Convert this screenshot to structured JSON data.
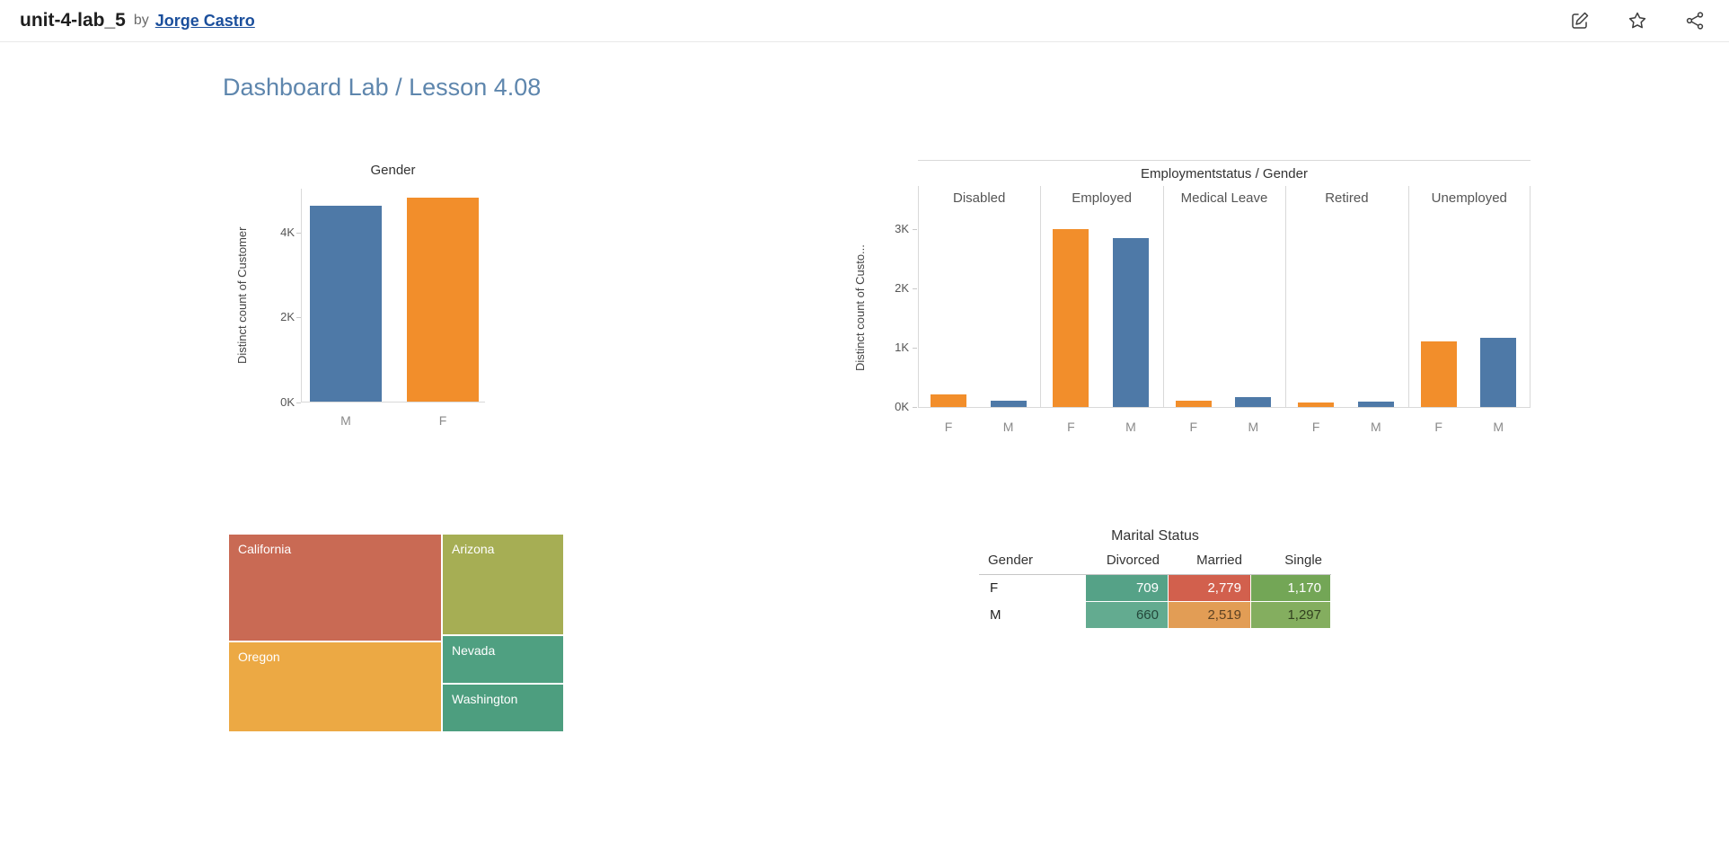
{
  "header": {
    "workbook_title": "unit-4-lab_5",
    "by_label": "by",
    "author": "Jorge Castro",
    "icons": [
      "make-copy-icon",
      "favorite-star-icon",
      "share-icon"
    ]
  },
  "dashboard": {
    "title": "Dashboard Lab / Lesson 4.08"
  },
  "colors": {
    "female_bar": "#f28e2b",
    "male_bar": "#4e79a7",
    "dashboard_title": "#5e86ad",
    "author_link": "#1b4f9c"
  },
  "chart_data": [
    {
      "id": "gender_distinct_count",
      "type": "bar",
      "title": "Gender",
      "ylabel": "Distinct count of Customer",
      "categories": [
        "M",
        "F"
      ],
      "values": [
        4600,
        4800
      ],
      "colors": [
        "#4e79a7",
        "#f28e2b"
      ],
      "ylim": [
        0,
        5030
      ],
      "yticks": [
        {
          "label": "0K",
          "value": 0
        },
        {
          "label": "2K",
          "value": 2000
        },
        {
          "label": "4K",
          "value": 4000
        }
      ]
    },
    {
      "id": "employment_status_by_gender",
      "type": "bar",
      "title": "Employmentstatus / Gender",
      "ylabel": "Distinct count of Custo...",
      "categories": [
        "F",
        "M"
      ],
      "series_colors": {
        "F": "#f28e2b",
        "M": "#4e79a7"
      },
      "panels": [
        {
          "label": "Disabled",
          "values": {
            "F": 210,
            "M": 110
          }
        },
        {
          "label": "Employed",
          "values": {
            "F": 3000,
            "M": 2840
          }
        },
        {
          "label": "Medical Leave",
          "values": {
            "F": 110,
            "M": 160
          }
        },
        {
          "label": "Retired",
          "values": {
            "F": 70,
            "M": 90
          }
        },
        {
          "label": "Unemployed",
          "values": {
            "F": 1100,
            "M": 1170
          }
        }
      ],
      "ylim": [
        0,
        3300
      ],
      "yticks": [
        {
          "label": "0K",
          "value": 0
        },
        {
          "label": "1K",
          "value": 1000
        },
        {
          "label": "2K",
          "value": 2000
        },
        {
          "label": "3K",
          "value": 3000
        }
      ]
    },
    {
      "id": "state_treemap",
      "type": "treemap",
      "items": [
        {
          "label": "California",
          "color": "#c96a54"
        },
        {
          "label": "Oregon",
          "color": "#eca944"
        },
        {
          "label": "Arizona",
          "color": "#a6ae54"
        },
        {
          "label": "Nevada",
          "color": "#4fa081"
        },
        {
          "label": "Washington",
          "color": "#4d9e7f"
        }
      ]
    },
    {
      "id": "marital_status_table",
      "type": "table",
      "title": "Marital Status",
      "columns": [
        "Gender",
        "Divorced",
        "Married",
        "Single"
      ],
      "rows": [
        {
          "gender": "F",
          "cells": [
            {
              "column": "Divorced",
              "value": 709,
              "display": "709",
              "bg": "#55a287",
              "fg": "#ffffff"
            },
            {
              "column": "Married",
              "value": 2779,
              "display": "2,779",
              "bg": "#d2604d",
              "fg": "#ffffff"
            },
            {
              "column": "Single",
              "value": 1170,
              "display": "1,170",
              "bg": "#73a656",
              "fg": "#ffffff"
            }
          ]
        },
        {
          "gender": "M",
          "cells": [
            {
              "column": "Divorced",
              "value": 660,
              "display": "660",
              "bg": "#63ab90",
              "fg": "#24473a"
            },
            {
              "column": "Married",
              "value": 2519,
              "display": "2,519",
              "bg": "#e29d55",
              "fg": "#5d4223"
            },
            {
              "column": "Single",
              "value": 1297,
              "display": "1,297",
              "bg": "#84ae5f",
              "fg": "#32411f"
            }
          ]
        }
      ]
    }
  ]
}
